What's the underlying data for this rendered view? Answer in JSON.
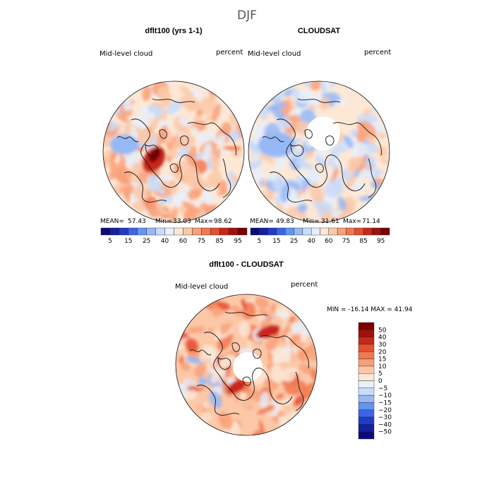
{
  "figure": {
    "title": "DJF"
  },
  "chart_data": [
    {
      "type": "heatmap",
      "title": "dflt100 (yrs 1-1)",
      "left_label": "Mid-level cloud",
      "right_label": "percent",
      "projection": "north-polar-stereographic",
      "stats": {
        "mean_label": "MEAN=",
        "mean": "57.43",
        "min_label": "Min=",
        "min": "33.03",
        "max_label": "Max=",
        "max": "98.62"
      },
      "colorbar": {
        "orientation": "horizontal",
        "tick_labels": [
          "5",
          "15",
          "25",
          "40",
          "60",
          "75",
          "85",
          "95"
        ],
        "colors": [
          "#0a0a78",
          "#1420a0",
          "#1e3cc8",
          "#3c64e6",
          "#6496f0",
          "#96b9f5",
          "#c8dcfa",
          "#e8f0fc",
          "#fde8d6",
          "#fcc8a8",
          "#f9a078",
          "#f27850",
          "#e45030",
          "#c8281a",
          "#a0100c",
          "#780000"
        ]
      },
      "data_range": [
        33.03,
        98.62
      ]
    },
    {
      "type": "heatmap",
      "title": "CLOUDSAT",
      "left_label": "Mid-level cloud",
      "right_label": "percent",
      "projection": "north-polar-stereographic",
      "missing_pole": true,
      "stats": {
        "mean_label": "MEAN=",
        "mean": "49.83",
        "min_label": "Min=",
        "min": "31.61",
        "max_label": "Max=",
        "max": "71.14"
      },
      "colorbar": {
        "orientation": "horizontal",
        "tick_labels": [
          "5",
          "15",
          "25",
          "40",
          "60",
          "75",
          "85",
          "95"
        ],
        "colors": [
          "#0a0a78",
          "#1420a0",
          "#1e3cc8",
          "#3c64e6",
          "#6496f0",
          "#96b9f5",
          "#c8dcfa",
          "#e8f0fc",
          "#fde8d6",
          "#fcc8a8",
          "#f9a078",
          "#f27850",
          "#e45030",
          "#c8281a",
          "#a0100c",
          "#780000"
        ]
      },
      "data_range": [
        31.61,
        71.14
      ]
    },
    {
      "type": "heatmap",
      "title": "dflt100 - CLOUDSAT",
      "left_label": "Mid-level cloud",
      "right_label": "percent",
      "projection": "north-polar-stereographic",
      "missing_pole": true,
      "stats_text": "MIN = -16.14 MAX =  41.94",
      "colorbar": {
        "orientation": "vertical",
        "tick_labels": [
          "50",
          "40",
          "30",
          "20",
          "15",
          "10",
          "5",
          "0",
          "-5",
          "-10",
          "-15",
          "-20",
          "-30",
          "-40",
          "-50"
        ],
        "colors": [
          "#780000",
          "#a0100c",
          "#c8281a",
          "#e45030",
          "#f27850",
          "#f9a078",
          "#fcc8a8",
          "#fde8d6",
          "#e8f0fc",
          "#c8dcfa",
          "#96b9f5",
          "#6496f0",
          "#3c64e6",
          "#1e3cc8",
          "#1420a0",
          "#0a0a78"
        ]
      },
      "data_range": [
        -16.14,
        41.94
      ]
    }
  ]
}
